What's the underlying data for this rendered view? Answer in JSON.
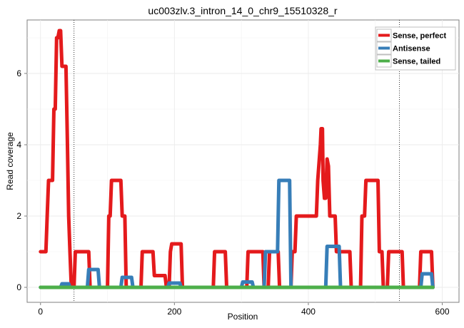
{
  "chart_data": {
    "type": "line",
    "title": "uc003zlv.3_intron_14_0_chr9_15510328_r",
    "xlabel": "Position",
    "ylabel": "Read coverage",
    "xlim": [
      -20,
      625
    ],
    "ylim": [
      -0.42,
      7.5
    ],
    "x_ticks": [
      0,
      200,
      400,
      600
    ],
    "x_tick_labels": [
      "0",
      "200",
      "400",
      "600"
    ],
    "y_ticks": [
      0,
      2,
      4,
      6
    ],
    "y_tick_labels": [
      "0",
      "2",
      "4",
      "6"
    ],
    "grid": true,
    "legend_position": "top-right",
    "vlines": [
      50,
      536
    ],
    "series": [
      {
        "name": "Sense, perfect",
        "color": "#e41a1c",
        "points": [
          [
            0,
            1
          ],
          [
            8,
            1
          ],
          [
            10,
            2
          ],
          [
            12,
            3
          ],
          [
            18,
            3
          ],
          [
            20,
            5
          ],
          [
            22,
            5
          ],
          [
            24,
            7
          ],
          [
            26,
            7
          ],
          [
            28,
            7.2
          ],
          [
            30,
            7.2
          ],
          [
            32,
            6.2
          ],
          [
            38,
            6.2
          ],
          [
            40,
            4.2
          ],
          [
            42,
            2
          ],
          [
            44,
            1
          ],
          [
            46,
            0
          ],
          [
            48,
            0
          ],
          [
            50,
            0
          ],
          [
            52,
            1
          ],
          [
            72,
            1
          ],
          [
            74,
            0
          ],
          [
            100,
            0
          ],
          [
            102,
            2
          ],
          [
            104,
            2
          ],
          [
            106,
            3
          ],
          [
            120,
            3
          ],
          [
            122,
            2
          ],
          [
            126,
            2
          ],
          [
            128,
            0
          ],
          [
            150,
            0
          ],
          [
            152,
            1
          ],
          [
            168,
            1
          ],
          [
            170,
            0.33
          ],
          [
            186,
            0.33
          ],
          [
            188,
            0
          ],
          [
            192,
            0
          ],
          [
            194,
            1
          ],
          [
            196,
            1.22
          ],
          [
            210,
            1.22
          ],
          [
            212,
            0
          ],
          [
            258,
            0
          ],
          [
            260,
            1
          ],
          [
            276,
            1
          ],
          [
            278,
            0
          ],
          [
            308,
            0
          ],
          [
            310,
            1
          ],
          [
            332,
            1
          ],
          [
            334,
            0
          ],
          [
            340,
            0
          ],
          [
            342,
            1
          ],
          [
            355,
            1
          ],
          [
            357,
            0
          ],
          [
            374,
            0
          ],
          [
            376,
            1
          ],
          [
            380,
            1
          ],
          [
            382,
            2
          ],
          [
            412,
            2
          ],
          [
            414,
            3
          ],
          [
            418,
            4
          ],
          [
            419,
            4.45
          ],
          [
            421,
            4.45
          ],
          [
            422,
            3
          ],
          [
            424,
            2.5
          ],
          [
            426,
            2.5
          ],
          [
            428,
            3.6
          ],
          [
            430,
            3.4
          ],
          [
            432,
            2
          ],
          [
            440,
            2
          ],
          [
            442,
            1
          ],
          [
            462,
            1
          ],
          [
            464,
            0
          ],
          [
            478,
            0
          ],
          [
            480,
            2
          ],
          [
            484,
            2
          ],
          [
            486,
            3
          ],
          [
            504,
            3
          ],
          [
            506,
            1
          ],
          [
            510,
            1
          ],
          [
            512,
            0
          ],
          [
            518,
            0
          ],
          [
            520,
            1
          ],
          [
            540,
            1
          ],
          [
            542,
            0
          ],
          [
            566,
            0
          ],
          [
            568,
            1
          ],
          [
            584,
            1
          ],
          [
            586,
            0
          ]
        ]
      },
      {
        "name": "Antisense",
        "color": "#377eb8",
        "points": [
          [
            0,
            0
          ],
          [
            30,
            0
          ],
          [
            32,
            0.1
          ],
          [
            42,
            0.1
          ],
          [
            44,
            0
          ],
          [
            70,
            0
          ],
          [
            72,
            0.5
          ],
          [
            86,
            0.5
          ],
          [
            88,
            0
          ],
          [
            120,
            0
          ],
          [
            122,
            0.28
          ],
          [
            136,
            0.28
          ],
          [
            138,
            0
          ],
          [
            190,
            0
          ],
          [
            192,
            0.12
          ],
          [
            208,
            0.12
          ],
          [
            210,
            0
          ],
          [
            300,
            0
          ],
          [
            302,
            0.15
          ],
          [
            316,
            0.15
          ],
          [
            318,
            0
          ],
          [
            334,
            0
          ],
          [
            336,
            1
          ],
          [
            354,
            1
          ],
          [
            356,
            3
          ],
          [
            372,
            3
          ],
          [
            374,
            0
          ],
          [
            426,
            0
          ],
          [
            428,
            1.15
          ],
          [
            446,
            1.15
          ],
          [
            448,
            0
          ],
          [
            568,
            0
          ],
          [
            570,
            0.38
          ],
          [
            584,
            0.38
          ],
          [
            586,
            0
          ]
        ]
      },
      {
        "name": "Sense, tailed",
        "color": "#4daf4a",
        "points": [
          [
            0,
            0
          ],
          [
            586,
            0
          ]
        ]
      }
    ]
  }
}
